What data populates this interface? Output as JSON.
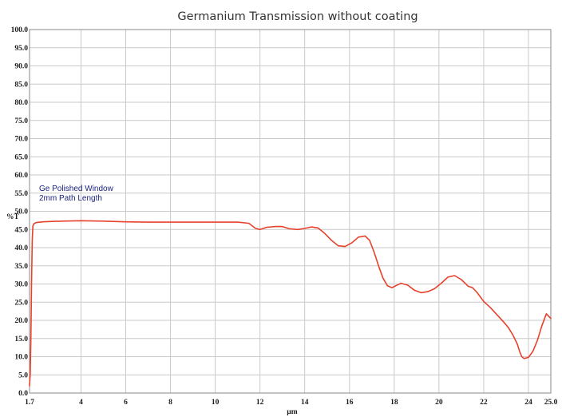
{
  "chart_data": {
    "type": "line",
    "title": "Germanium Transmission without coating",
    "xlabel": "µm",
    "ylabel": "%T",
    "xlim": [
      1.7,
      25.0
    ],
    "ylim": [
      0,
      100
    ],
    "grid": true,
    "x_ticks": [
      {
        "value": 1.7,
        "label": "1.7"
      },
      {
        "value": 4,
        "label": "4"
      },
      {
        "value": 6,
        "label": "6"
      },
      {
        "value": 8,
        "label": "8"
      },
      {
        "value": 10,
        "label": "10"
      },
      {
        "value": 12,
        "label": "12"
      },
      {
        "value": 14,
        "label": "14"
      },
      {
        "value": 16,
        "label": "16"
      },
      {
        "value": 18,
        "label": "18"
      },
      {
        "value": 20,
        "label": "20"
      },
      {
        "value": 22,
        "label": "22"
      },
      {
        "value": 24,
        "label": "24"
      },
      {
        "value": 25.0,
        "label": "25.0"
      }
    ],
    "y_ticks": [
      {
        "value": 0,
        "label": "0.0"
      },
      {
        "value": 5,
        "label": "5.0"
      },
      {
        "value": 10,
        "label": "10.0"
      },
      {
        "value": 15,
        "label": "15.0"
      },
      {
        "value": 20,
        "label": "20.0"
      },
      {
        "value": 25,
        "label": "25.0"
      },
      {
        "value": 30,
        "label": "30.0"
      },
      {
        "value": 35,
        "label": "35.0"
      },
      {
        "value": 40,
        "label": "40.0"
      },
      {
        "value": 45,
        "label": "45.0"
      },
      {
        "value": 50,
        "label": "50.0"
      },
      {
        "value": 55,
        "label": "55.0"
      },
      {
        "value": 60,
        "label": "60.0"
      },
      {
        "value": 65,
        "label": "65.0"
      },
      {
        "value": 70,
        "label": "70.0"
      },
      {
        "value": 75,
        "label": "75.0"
      },
      {
        "value": 80,
        "label": "80.0"
      },
      {
        "value": 85,
        "label": "85.0"
      },
      {
        "value": 90,
        "label": "90.0"
      },
      {
        "value": 95,
        "label": "95.0"
      },
      {
        "value": 100,
        "label": "100.0"
      }
    ],
    "annotation": [
      "Ge Polished Window",
      "2mm Path Length"
    ],
    "series": [
      {
        "color": "#e8412c",
        "x": [
          1.7,
          1.73,
          1.76,
          1.79,
          1.82,
          1.85,
          1.9,
          2.0,
          2.3,
          2.7,
          3.2,
          4.0,
          5.0,
          6.0,
          7.0,
          8.0,
          9.0,
          10.0,
          11.0,
          11.5,
          11.8,
          12.0,
          12.3,
          12.7,
          13.0,
          13.3,
          13.7,
          14.0,
          14.3,
          14.6,
          14.9,
          15.2,
          15.5,
          15.8,
          16.1,
          16.4,
          16.7,
          16.9,
          17.1,
          17.3,
          17.5,
          17.7,
          17.9,
          18.1,
          18.3,
          18.6,
          18.9,
          19.2,
          19.5,
          19.8,
          20.1,
          20.4,
          20.7,
          21.0,
          21.3,
          21.5,
          21.7,
          22.0,
          22.3,
          22.6,
          22.9,
          23.1,
          23.3,
          23.5,
          23.6,
          23.7,
          23.8,
          24.0,
          24.2,
          24.4,
          24.6,
          24.8,
          25.0
        ],
        "y": [
          2.0,
          5.0,
          15.0,
          30.0,
          42.0,
          46.0,
          46.6,
          46.9,
          47.1,
          47.2,
          47.3,
          47.4,
          47.3,
          47.1,
          47.0,
          47.0,
          47.0,
          47.0,
          47.0,
          46.7,
          45.3,
          45.0,
          45.6,
          45.8,
          45.8,
          45.2,
          45.0,
          45.3,
          45.7,
          45.4,
          43.9,
          42.0,
          40.5,
          40.3,
          41.3,
          42.9,
          43.2,
          42.0,
          38.8,
          35.0,
          31.6,
          29.5,
          29.0,
          29.6,
          30.2,
          29.7,
          28.3,
          27.6,
          27.9,
          28.7,
          30.2,
          31.9,
          32.3,
          31.2,
          29.4,
          29.0,
          27.7,
          25.2,
          23.5,
          21.5,
          19.5,
          18.0,
          16.0,
          13.5,
          11.5,
          10.0,
          9.5,
          9.8,
          11.5,
          14.5,
          18.5,
          21.8,
          20.5
        ]
      }
    ]
  }
}
